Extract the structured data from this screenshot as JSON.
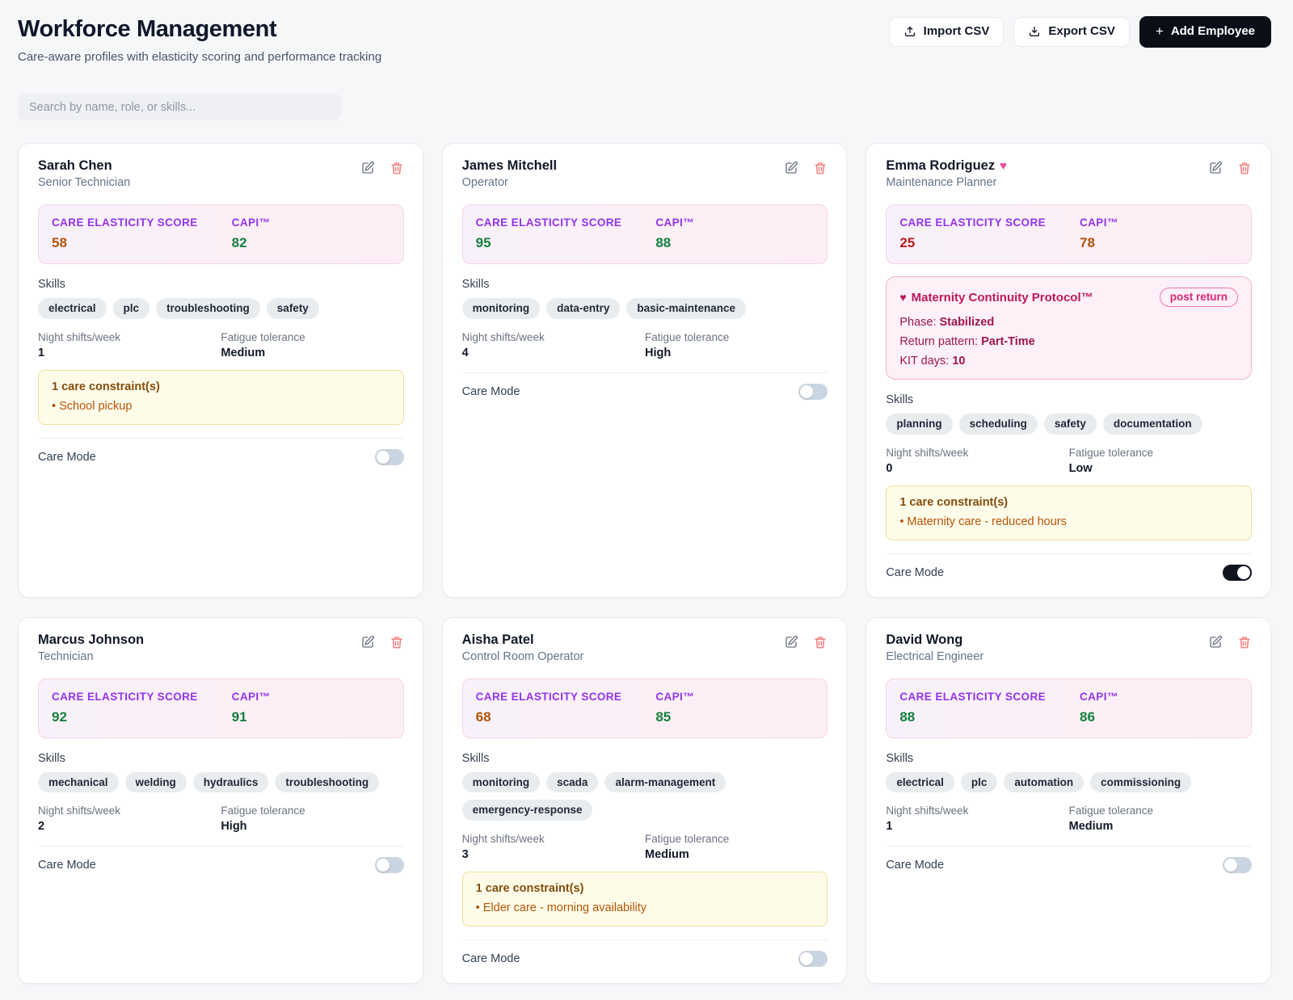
{
  "page": {
    "title": "Workforce Management",
    "subtitle": "Care-aware profiles with elasticity scoring and performance tracking",
    "search_placeholder": "Search by name, role, or skills...",
    "import_label": "Import CSV",
    "export_label": "Export CSV",
    "add_label": "Add Employee"
  },
  "labels": {
    "care_elasticity": "CARE ELASTICITY SCORE",
    "capi": "CAPI™",
    "skills": "Skills",
    "night_shifts": "Night shifts/week",
    "fatigue": "Fatigue tolerance",
    "care_mode": "Care Mode"
  },
  "colors": {
    "accent_purple": "#9333ea",
    "score_green": "#15803d",
    "score_amber": "#b45309",
    "score_red": "#b91c1c",
    "maternity_pink": "#be185d",
    "constraint_amber": "#854d0e",
    "toggle_on": "#10141f"
  },
  "employees": [
    {
      "name": "Sarah Chen",
      "role": "Senior Technician",
      "heart": false,
      "score": "58",
      "score_color": "amber",
      "capi": "82",
      "capi_color": "green",
      "skills": [
        "electrical",
        "plc",
        "troubleshooting",
        "safety"
      ],
      "night_shifts": "1",
      "fatigue": "Medium",
      "constraints": {
        "title": "1 care constraint(s)",
        "items": [
          "School pickup"
        ]
      },
      "care_mode_on": false
    },
    {
      "name": "James Mitchell",
      "role": "Operator",
      "heart": false,
      "score": "95",
      "score_color": "green",
      "capi": "88",
      "capi_color": "green",
      "skills": [
        "monitoring",
        "data-entry",
        "basic-maintenance"
      ],
      "night_shifts": "4",
      "fatigue": "High",
      "constraints": null,
      "care_mode_on": false
    },
    {
      "name": "Emma Rodriguez",
      "role": "Maintenance Planner",
      "heart": true,
      "score": "25",
      "score_color": "red",
      "capi": "78",
      "capi_color": "amber",
      "maternity": {
        "title": "Maternity Continuity Protocol™",
        "badge": "post return",
        "rows": [
          {
            "label": "Phase:",
            "value": "Stabilized"
          },
          {
            "label": "Return pattern:",
            "value": "Part-Time"
          },
          {
            "label": "KIT days:",
            "value": "10"
          }
        ]
      },
      "skills": [
        "planning",
        "scheduling",
        "safety",
        "documentation"
      ],
      "night_shifts": "0",
      "fatigue": "Low",
      "constraints": {
        "title": "1 care constraint(s)",
        "items": [
          "Maternity care - reduced hours"
        ]
      },
      "care_mode_on": true
    },
    {
      "name": "Marcus Johnson",
      "role": "Technician",
      "heart": false,
      "score": "92",
      "score_color": "green",
      "capi": "91",
      "capi_color": "green",
      "skills": [
        "mechanical",
        "welding",
        "hydraulics",
        "troubleshooting"
      ],
      "night_shifts": "2",
      "fatigue": "High",
      "constraints": null,
      "care_mode_on": false
    },
    {
      "name": "Aisha Patel",
      "role": "Control Room Operator",
      "heart": false,
      "score": "68",
      "score_color": "amber",
      "capi": "85",
      "capi_color": "green",
      "skills": [
        "monitoring",
        "scada",
        "alarm-management",
        "emergency-response"
      ],
      "night_shifts": "3",
      "fatigue": "Medium",
      "constraints": {
        "title": "1 care constraint(s)",
        "items": [
          "Elder care - morning availability"
        ]
      },
      "care_mode_on": false
    },
    {
      "name": "David Wong",
      "role": "Electrical Engineer",
      "heart": false,
      "score": "88",
      "score_color": "green",
      "capi": "86",
      "capi_color": "green",
      "skills": [
        "electrical",
        "plc",
        "automation",
        "commissioning"
      ],
      "night_shifts": "1",
      "fatigue": "Medium",
      "constraints": null,
      "care_mode_on": false
    }
  ]
}
